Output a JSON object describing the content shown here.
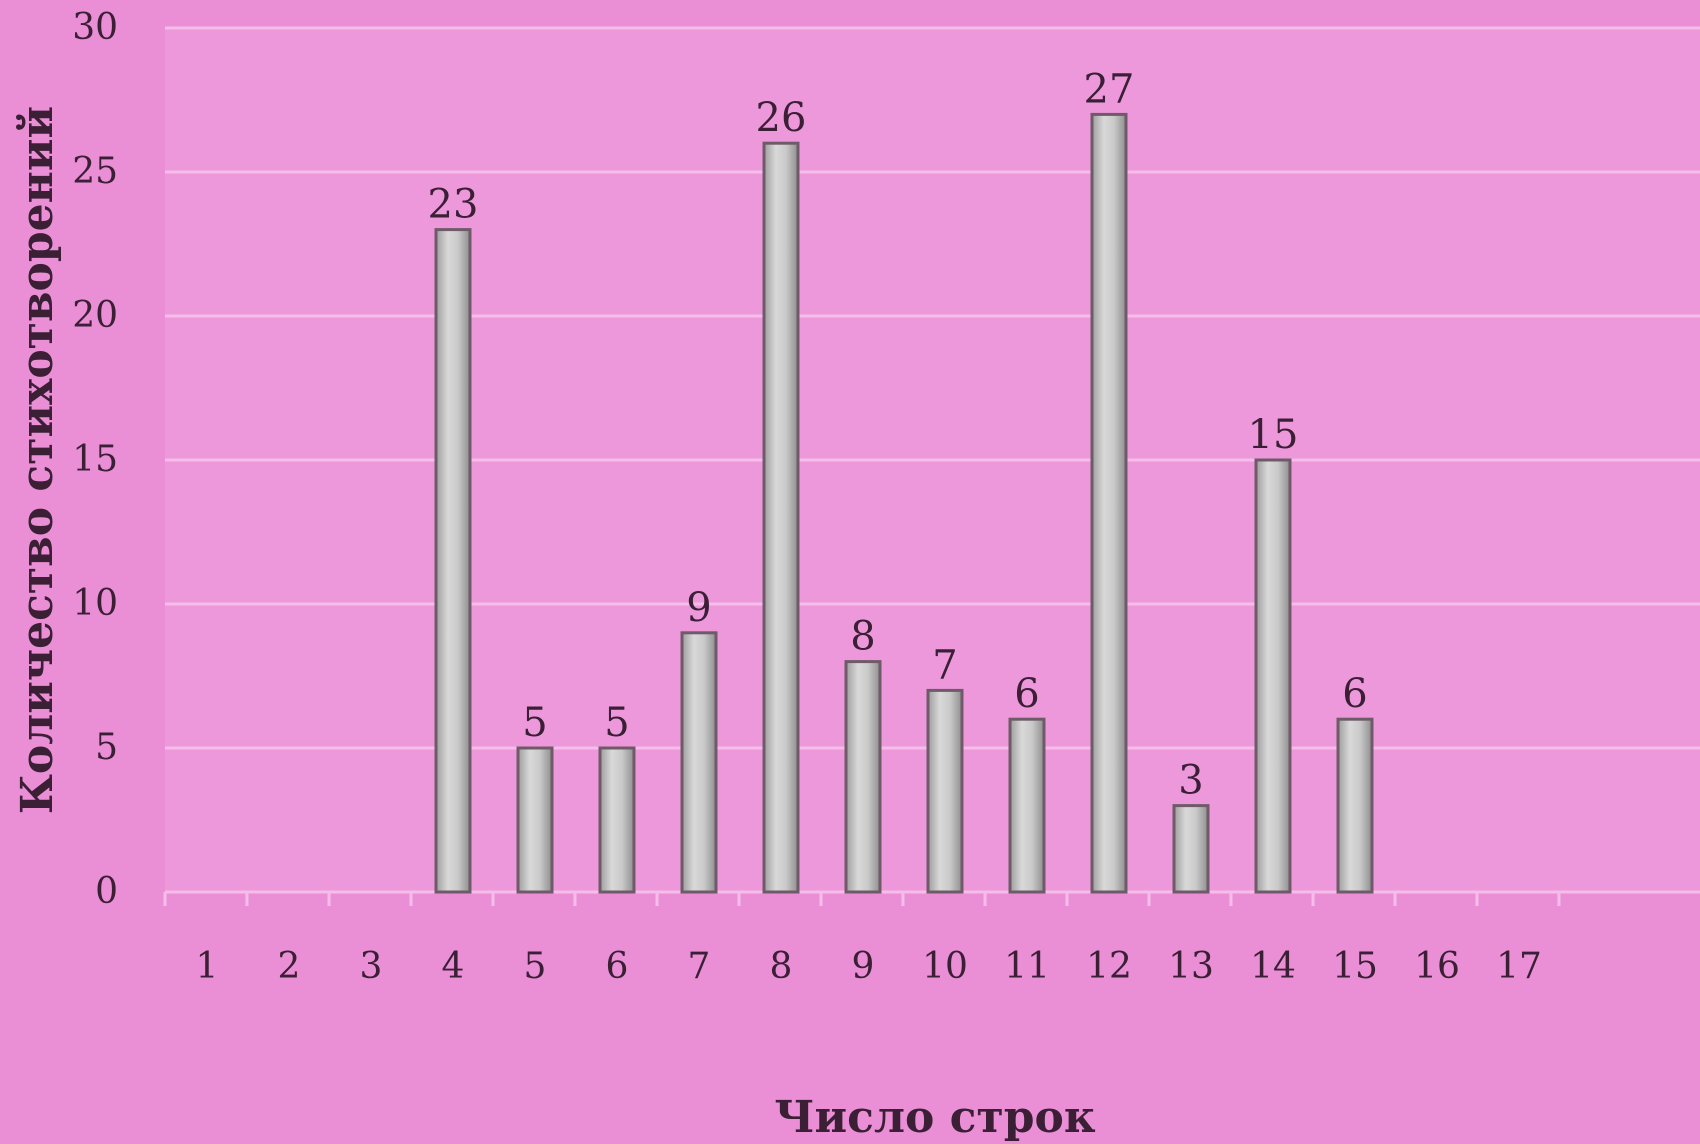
{
  "chart_data": {
    "type": "bar",
    "title": "",
    "xlabel": "Число строк",
    "ylabel": "Количество стихотворений",
    "categories": [
      "1",
      "2",
      "3",
      "4",
      "5",
      "6",
      "7",
      "8",
      "9",
      "10",
      "11",
      "12",
      "13",
      "14",
      "15",
      "16",
      "17"
    ],
    "values": [
      0,
      0,
      0,
      23,
      5,
      5,
      9,
      26,
      8,
      7,
      6,
      27,
      3,
      15,
      6,
      0,
      0
    ],
    "data_labels": [
      "",
      "",
      "",
      "23",
      "5",
      "5",
      "9",
      "26",
      "8",
      "7",
      "6",
      "27",
      "3",
      "15",
      "6",
      "",
      ""
    ],
    "ylim": [
      0,
      30
    ],
    "y_ticks": [
      "0",
      "5",
      "10",
      "15",
      "20",
      "25",
      "30"
    ],
    "grid": true,
    "legend": "none",
    "colors": {
      "background": "#ea8fd6",
      "plot_background": "#ee98dc",
      "gridline": "#f6bde9",
      "bar_fill": "#c4c4c4",
      "bar_stroke": "#6f5a68",
      "text": "#3a1f35"
    }
  }
}
